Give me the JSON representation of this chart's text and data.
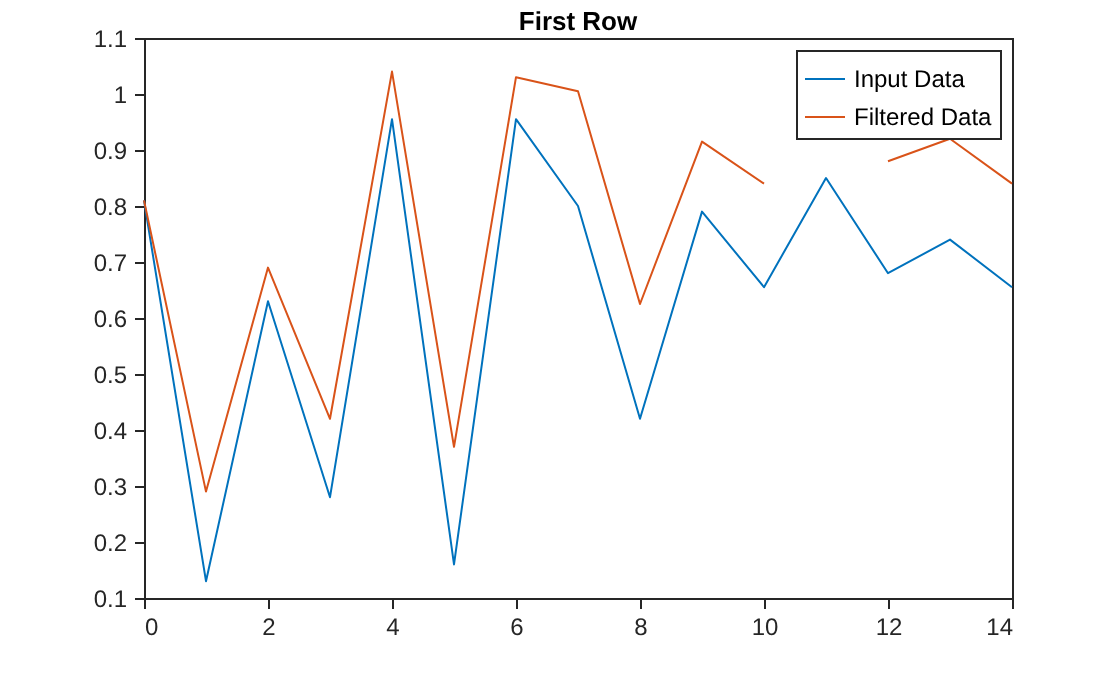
{
  "chart_data": {
    "type": "line",
    "title": "First Row",
    "x": [
      0,
      1,
      2,
      3,
      4,
      5,
      6,
      7,
      8,
      9,
      10,
      11,
      12,
      13,
      14
    ],
    "series": [
      {
        "name": "Input Data",
        "color": "#0072bd",
        "values": [
          0.81,
          0.13,
          0.63,
          0.28,
          0.955,
          0.16,
          0.955,
          0.8,
          0.42,
          0.79,
          0.655,
          0.85,
          0.68,
          0.74,
          0.655
        ]
      },
      {
        "name": "Filtered Data",
        "color": "#d95319",
        "values": [
          0.81,
          0.29,
          0.69,
          0.42,
          1.04,
          0.37,
          1.03,
          1.005,
          0.625,
          0.915,
          0.84,
          null,
          0.88,
          0.92,
          0.84
        ]
      }
    ],
    "xlim": [
      0,
      14
    ],
    "xticks": [
      0,
      2,
      4,
      6,
      8,
      10,
      12,
      14
    ],
    "ylim": [
      0.1,
      1.1
    ],
    "yticks": [
      0.1,
      0.2,
      0.3,
      0.4,
      0.5,
      0.6,
      0.7,
      0.8,
      0.9,
      1,
      1.1
    ],
    "legend": "top right",
    "grid": false,
    "marker": "none",
    "line_style": "solid"
  }
}
